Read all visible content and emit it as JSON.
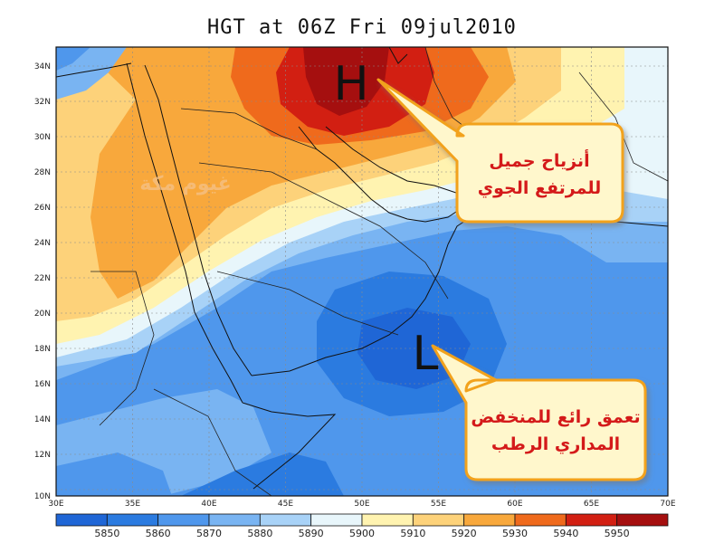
{
  "title": "HGT at 06Z Fri 09jul2010",
  "map": {
    "lon_ticks": [
      "30E",
      "35E",
      "40E",
      "45E",
      "50E",
      "55E",
      "60E",
      "65E",
      "70E"
    ],
    "lat_ticks": [
      "34N",
      "32N",
      "30N",
      "28N",
      "26N",
      "24N",
      "22N",
      "20N",
      "18N",
      "16N",
      "14N",
      "12N",
      "10N"
    ],
    "high_label": "H",
    "low_label": "L",
    "high_note_line1": "أنزياح جميل",
    "high_note_line2": "للمرتفع الجوي",
    "low_note_line1": "تعمق رائع للمنخفض",
    "low_note_line2": "المداري الرطب",
    "watermark": "غيوم مكة"
  },
  "colorbar": {
    "labels": [
      "5850",
      "5860",
      "5870",
      "5880",
      "5890",
      "5900",
      "5910",
      "5920",
      "5930",
      "5940",
      "5950"
    ],
    "colors": [
      "#1f66d6",
      "#2b7be0",
      "#4f97ec",
      "#79b4f2",
      "#a8d2f7",
      "#e8f6fb",
      "#fff3b0",
      "#fdd27a",
      "#f8a83c",
      "#ef6a1c",
      "#d21f12",
      "#a50f0f"
    ]
  },
  "colors": {
    "callout_fill": "#fff7cc",
    "callout_border": "#f2a21b",
    "callout_text": "#d41a1a"
  }
}
